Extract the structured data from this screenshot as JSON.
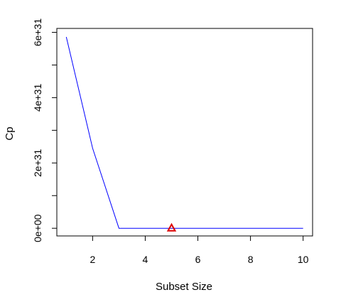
{
  "chart_data": {
    "type": "line",
    "title": "",
    "xlabel": "Subset Size",
    "ylabel": "Cp",
    "xlim": [
      0.64,
      10.36
    ],
    "ylim": [
      -2.35e+30,
      6.12e+31
    ],
    "x_ticks": [
      2,
      4,
      6,
      8,
      10
    ],
    "x_tick_labels": [
      "2",
      "4",
      "6",
      "8",
      "10"
    ],
    "y_ticks": [
      0,
      1e+31,
      2e+31,
      3e+31,
      4e+31,
      5e+31,
      6e+31
    ],
    "y_tick_labels": [
      "0e+00",
      "",
      "2e+31",
      "",
      "4e+31",
      "",
      "6e+31"
    ],
    "grid": false,
    "series": [
      {
        "color": "#0000ff",
        "x": [
          1,
          2,
          3,
          4,
          5,
          6,
          7,
          8,
          9,
          10
        ],
        "values": [
          5.86e+31,
          2.45e+31,
          0,
          0,
          0,
          0,
          0,
          0,
          0,
          0
        ]
      }
    ],
    "highlight_point": {
      "x": 5,
      "y": 0,
      "marker": "triangle",
      "color": "#dd0000"
    }
  }
}
